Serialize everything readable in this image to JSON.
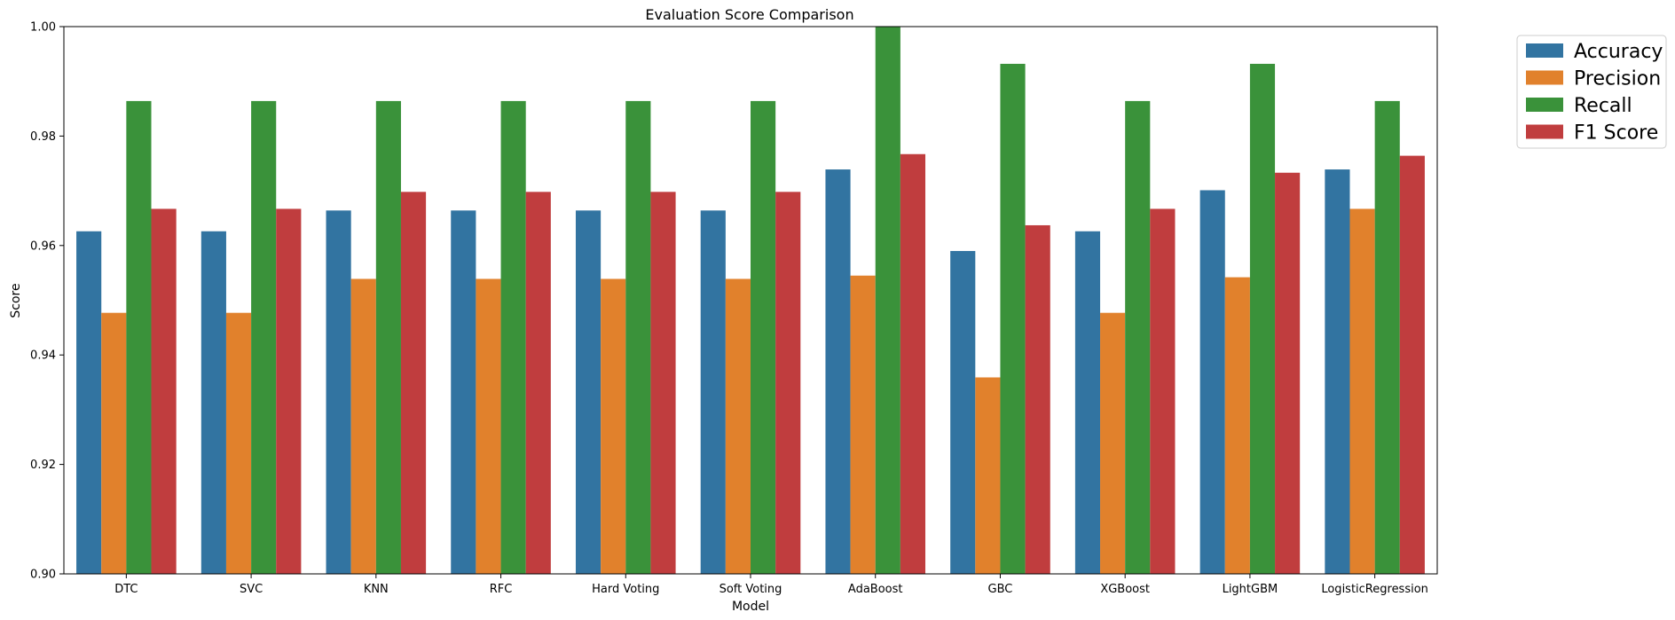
{
  "chart_data": {
    "type": "bar",
    "title": "Evaluation Score Comparison",
    "xlabel": "Model",
    "ylabel": "Score",
    "ylim": [
      0.9,
      1.0
    ],
    "yticks": [
      "0.90",
      "0.92",
      "0.94",
      "0.96",
      "0.98",
      "1.00"
    ],
    "grid": false,
    "legend_position": "outside-top-right",
    "categories": [
      "DTC",
      "SVC",
      "KNN",
      "RFC",
      "Hard Voting",
      "Soft Voting",
      "AdaBoost",
      "GBC",
      "XGBoost",
      "LightGBM",
      "LogisticRegression"
    ],
    "series": [
      {
        "name": "Accuracy",
        "color": "#3274a1",
        "values": [
          0.9626,
          0.9626,
          0.9664,
          0.9664,
          0.9664,
          0.9664,
          0.9739,
          0.959,
          0.9626,
          0.9701,
          0.9739
        ]
      },
      {
        "name": "Precision",
        "color": "#e1812c",
        "values": [
          0.9477,
          0.9477,
          0.9539,
          0.9539,
          0.9539,
          0.9539,
          0.9545,
          0.9359,
          0.9477,
          0.9542,
          0.9667
        ]
      },
      {
        "name": "Recall",
        "color": "#3a923a",
        "values": [
          0.9864,
          0.9864,
          0.9864,
          0.9864,
          0.9864,
          0.9864,
          1.0,
          0.9932,
          0.9864,
          0.9932,
          0.9864
        ]
      },
      {
        "name": "F1 Score",
        "color": "#c03d3e",
        "values": [
          0.9667,
          0.9667,
          0.9698,
          0.9698,
          0.9698,
          0.9698,
          0.9767,
          0.9637,
          0.9667,
          0.9733,
          0.9764
        ]
      }
    ]
  }
}
